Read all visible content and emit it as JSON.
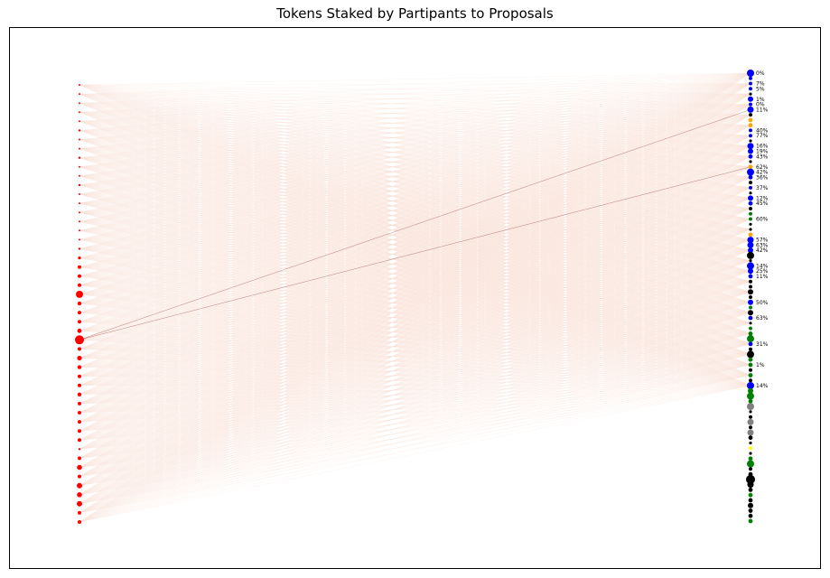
{
  "chart_data": {
    "type": "network-bipartite",
    "title": "Tokens Staked by Partipants to Proposals",
    "xlabel": "",
    "ylabel": "",
    "grid": false,
    "participants": [
      {
        "size": 1.0
      },
      {
        "size": 1.0
      },
      {
        "size": 1.0
      },
      {
        "size": 1.0
      },
      {
        "size": 1.0
      },
      {
        "size": 1.2
      },
      {
        "size": 1.0
      },
      {
        "size": 1.0
      },
      {
        "size": 1.2
      },
      {
        "size": 1.0
      },
      {
        "size": 1.0
      },
      {
        "size": 1.2
      },
      {
        "size": 1.0
      },
      {
        "size": 1.0
      },
      {
        "size": 1.0
      },
      {
        "size": 1.0
      },
      {
        "size": 1.0
      },
      {
        "size": 1.0
      },
      {
        "size": 1.2
      },
      {
        "size": 1.6
      },
      {
        "size": 2.0
      },
      {
        "size": 2.0
      },
      {
        "size": 2.0
      },
      {
        "size": 4.0
      },
      {
        "size": 2.2
      },
      {
        "size": 2.0
      },
      {
        "size": 2.0
      },
      {
        "size": 2.4
      },
      {
        "size": 5.0
      },
      {
        "size": 2.0
      },
      {
        "size": 2.6
      },
      {
        "size": 2.2
      },
      {
        "size": 2.0
      },
      {
        "size": 2.0
      },
      {
        "size": 2.2
      },
      {
        "size": 2.0
      },
      {
        "size": 2.0
      },
      {
        "size": 2.0
      },
      {
        "size": 2.0
      },
      {
        "size": 2.0
      },
      {
        "size": 1.2
      },
      {
        "size": 2.0
      },
      {
        "size": 2.8
      },
      {
        "size": 2.0
      },
      {
        "size": 3.0
      },
      {
        "size": 2.8
      },
      {
        "size": 3.0
      },
      {
        "size": 2.0
      },
      {
        "size": 2.0
      }
    ],
    "proposals": [
      {
        "color": "#0000ff",
        "size": 4.0,
        "label": "0%"
      },
      {
        "color": "#0000ff",
        "size": 2.0,
        "label": ""
      },
      {
        "color": "#0000ff",
        "size": 2.0,
        "label": "7%"
      },
      {
        "color": "#0000ff",
        "size": 2.0,
        "label": "5%"
      },
      {
        "color": "#000000",
        "size": 1.6,
        "label": ""
      },
      {
        "color": "#0000ff",
        "size": 3.0,
        "label": "1%"
      },
      {
        "color": "#0000ff",
        "size": 2.0,
        "label": "0%"
      },
      {
        "color": "#0000ff",
        "size": 3.5,
        "label": "11%"
      },
      {
        "color": "#000000",
        "size": 2.0,
        "label": ""
      },
      {
        "color": "#ffa500",
        "size": 2.4,
        "label": ""
      },
      {
        "color": "#ffa500",
        "size": 2.4,
        "label": ""
      },
      {
        "color": "#0000ff",
        "size": 2.0,
        "label": "40%"
      },
      {
        "color": "#0000ff",
        "size": 2.0,
        "label": "77%"
      },
      {
        "color": "#000000",
        "size": 1.6,
        "label": ""
      },
      {
        "color": "#0000ff",
        "size": 3.5,
        "label": "16%"
      },
      {
        "color": "#0000ff",
        "size": 3.0,
        "label": "19%"
      },
      {
        "color": "#0000ff",
        "size": 2.4,
        "label": "43%"
      },
      {
        "color": "#000000",
        "size": 1.6,
        "label": ""
      },
      {
        "color": "#ffa500",
        "size": 2.4,
        "label": "62%"
      },
      {
        "color": "#0000ff",
        "size": 4.0,
        "label": "42%"
      },
      {
        "color": "#0000ff",
        "size": 2.4,
        "label": "36%"
      },
      {
        "color": "#000000",
        "size": 2.0,
        "label": ""
      },
      {
        "color": "#0000ff",
        "size": 2.0,
        "label": "37%"
      },
      {
        "color": "#000000",
        "size": 1.6,
        "label": ""
      },
      {
        "color": "#0000ff",
        "size": 3.0,
        "label": "12%"
      },
      {
        "color": "#0000ff",
        "size": 2.4,
        "label": "45%"
      },
      {
        "color": "#000000",
        "size": 2.0,
        "label": ""
      },
      {
        "color": "#008000",
        "size": 2.0,
        "label": ""
      },
      {
        "color": "#008000",
        "size": 2.0,
        "label": "60%"
      },
      {
        "color": "#000000",
        "size": 1.6,
        "label": ""
      },
      {
        "color": "#000000",
        "size": 1.6,
        "label": ""
      },
      {
        "color": "#ffa500",
        "size": 2.4,
        "label": ""
      },
      {
        "color": "#0000ff",
        "size": 3.5,
        "label": "57%"
      },
      {
        "color": "#0000ff",
        "size": 3.5,
        "label": "63%"
      },
      {
        "color": "#0000ff",
        "size": 3.0,
        "label": "42%"
      },
      {
        "color": "#000000",
        "size": 4.0,
        "label": ""
      },
      {
        "color": "#000000",
        "size": 1.6,
        "label": ""
      },
      {
        "color": "#0000ff",
        "size": 4.0,
        "label": "14%"
      },
      {
        "color": "#0000ff",
        "size": 3.0,
        "label": "25%"
      },
      {
        "color": "#0000ff",
        "size": 2.4,
        "label": "11%"
      },
      {
        "color": "#000000",
        "size": 2.0,
        "label": ""
      },
      {
        "color": "#000000",
        "size": 2.0,
        "label": ""
      },
      {
        "color": "#000000",
        "size": 3.0,
        "label": ""
      },
      {
        "color": "#000000",
        "size": 2.0,
        "label": ""
      },
      {
        "color": "#0000ff",
        "size": 3.0,
        "label": "50%"
      },
      {
        "color": "#008000",
        "size": 2.0,
        "label": ""
      },
      {
        "color": "#000000",
        "size": 3.0,
        "label": ""
      },
      {
        "color": "#0000ff",
        "size": 2.4,
        "label": "63%"
      },
      {
        "color": "#000000",
        "size": 1.6,
        "label": ""
      },
      {
        "color": "#008000",
        "size": 2.0,
        "label": ""
      },
      {
        "color": "#008000",
        "size": 2.4,
        "label": ""
      },
      {
        "color": "#008000",
        "size": 4.0,
        "label": ""
      },
      {
        "color": "#0000ff",
        "size": 2.4,
        "label": "31%"
      },
      {
        "color": "#000000",
        "size": 2.0,
        "label": ""
      },
      {
        "color": "#000000",
        "size": 4.0,
        "label": ""
      },
      {
        "color": "#008000",
        "size": 2.4,
        "label": ""
      },
      {
        "color": "#008000",
        "size": 2.4,
        "label": "1%"
      },
      {
        "color": "#000000",
        "size": 2.0,
        "label": ""
      },
      {
        "color": "#008000",
        "size": 2.4,
        "label": ""
      },
      {
        "color": "#000000",
        "size": 2.0,
        "label": ""
      },
      {
        "color": "#0000ff",
        "size": 4.0,
        "label": "14%"
      },
      {
        "color": "#008000",
        "size": 3.0,
        "label": ""
      },
      {
        "color": "#008000",
        "size": 4.0,
        "label": ""
      },
      {
        "color": "#008000",
        "size": 2.4,
        "label": ""
      },
      {
        "color": "#808080",
        "size": 4.0,
        "label": ""
      },
      {
        "color": "#000000",
        "size": 1.6,
        "label": ""
      },
      {
        "color": "#000000",
        "size": 2.0,
        "label": ""
      },
      {
        "color": "#808080",
        "size": 3.5,
        "label": ""
      },
      {
        "color": "#000000",
        "size": 2.0,
        "label": ""
      },
      {
        "color": "#808080",
        "size": 3.5,
        "label": ""
      },
      {
        "color": "#000000",
        "size": 2.4,
        "label": ""
      },
      {
        "color": "#000000",
        "size": 1.6,
        "label": ""
      },
      {
        "color": "#ffff00",
        "size": 2.0,
        "label": ""
      },
      {
        "color": "#000000",
        "size": 1.6,
        "label": ""
      },
      {
        "color": "#008000",
        "size": 2.4,
        "label": ""
      },
      {
        "color": "#008000",
        "size": 4.0,
        "label": ""
      },
      {
        "color": "#000000",
        "size": 2.0,
        "label": ""
      },
      {
        "color": "#000000",
        "size": 2.4,
        "label": ""
      },
      {
        "color": "#000000",
        "size": 5.0,
        "label": ""
      },
      {
        "color": "#000000",
        "size": 3.5,
        "label": ""
      },
      {
        "color": "#000000",
        "size": 2.4,
        "label": ""
      },
      {
        "color": "#008000",
        "size": 2.4,
        "label": ""
      },
      {
        "color": "#000000",
        "size": 2.4,
        "label": ""
      },
      {
        "color": "#000000",
        "size": 3.0,
        "label": ""
      },
      {
        "color": "#000000",
        "size": 2.4,
        "label": ""
      },
      {
        "color": "#000000",
        "size": 2.4,
        "label": ""
      },
      {
        "color": "#008000",
        "size": 2.4,
        "label": ""
      }
    ],
    "colors": {
      "participant": "#ff0000",
      "edge": "#fbe3d7",
      "edge_strong": "#7a1010",
      "frame": "#000000"
    },
    "strong_edges": [
      {
        "from_participant": 28,
        "to_proposal": 7
      },
      {
        "from_participant": 28,
        "to_proposal": 18
      }
    ]
  }
}
